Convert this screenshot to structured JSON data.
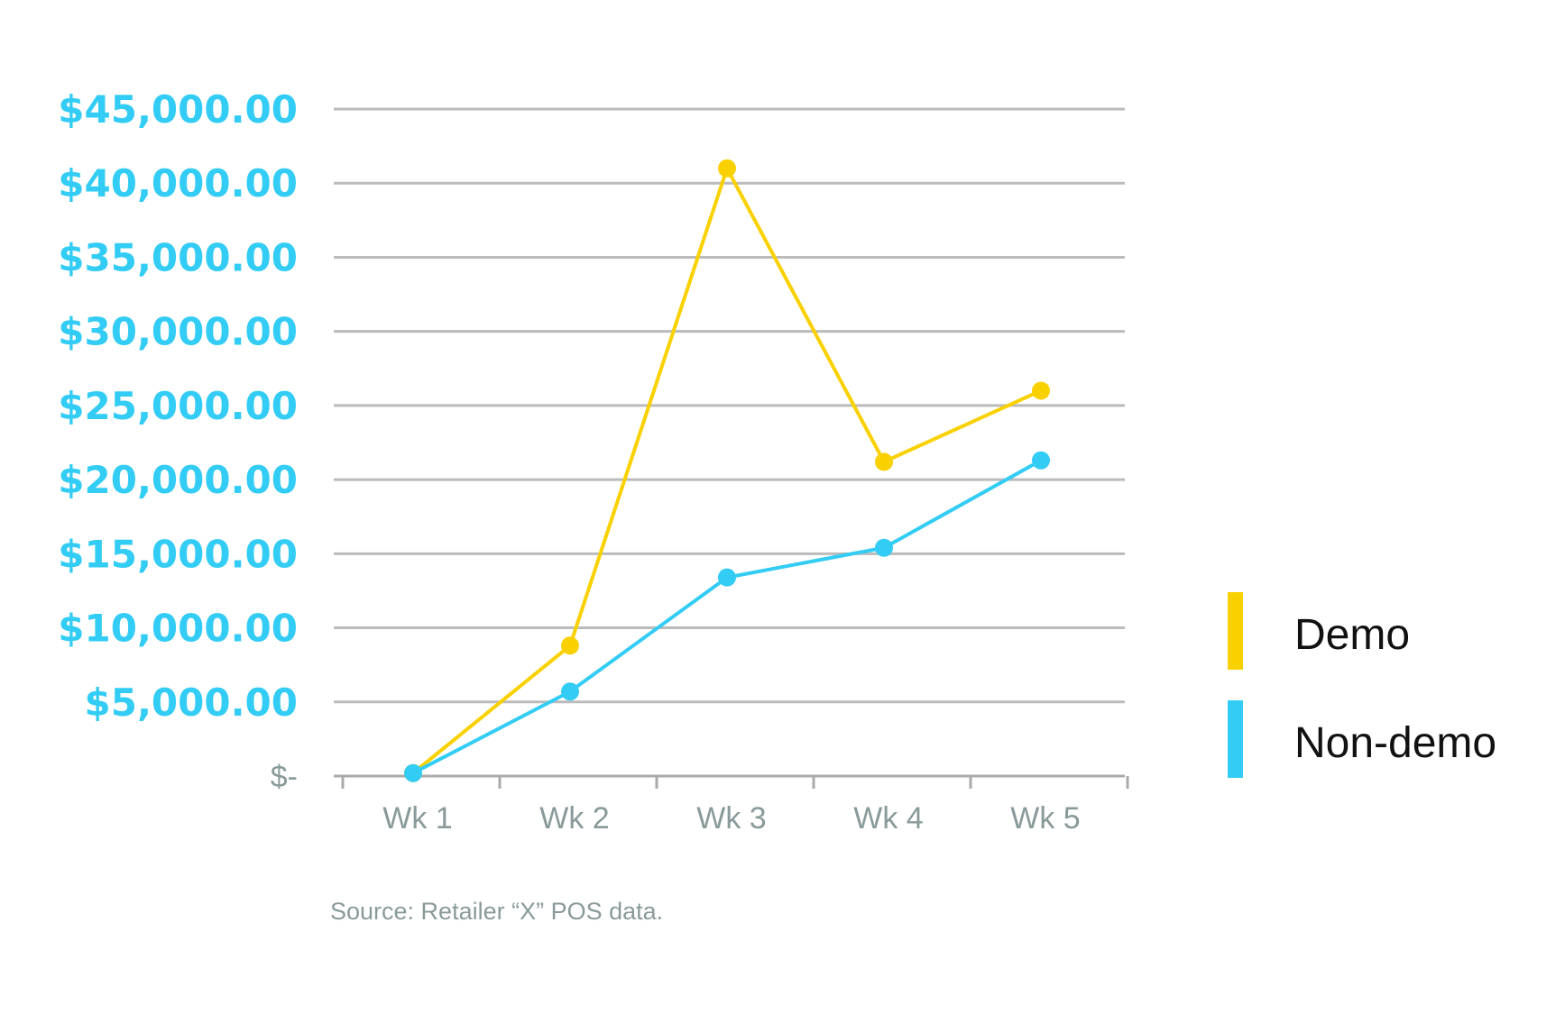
{
  "colors": {
    "demo": "#F9D100",
    "non_demo": "#33CCF5",
    "ytick_text": "#33CCF5",
    "ytick_zero_text": "#8A9A9A",
    "xtick_text": "#8A9A9A",
    "grid": "#BBBBBB",
    "axis": "#AAAAAA",
    "source_text": "#8A9A9A"
  },
  "chart_data": {
    "type": "line",
    "title": "",
    "xlabel": "",
    "ylabel": "",
    "categories": [
      "Wk 1",
      "Wk 2",
      "Wk 3",
      "Wk 4",
      "Wk 5"
    ],
    "ylim": [
      0,
      45000
    ],
    "yticks": [
      0,
      5000,
      10000,
      15000,
      20000,
      25000,
      30000,
      35000,
      40000,
      45000
    ],
    "ytick_labels": [
      "$-",
      "$5,000.00",
      "$10,000.00",
      "$15,000.00",
      "$20,000.00",
      "$25,000.00",
      "$30,000.00",
      "$35,000.00",
      "$40,000.00",
      "$45,000.00"
    ],
    "grid": true,
    "legend_position": "right",
    "series": [
      {
        "name": "Demo",
        "color_key": "demo",
        "values": [
          200,
          8800,
          41000,
          21200,
          26000
        ]
      },
      {
        "name": "Non-demo",
        "color_key": "non_demo",
        "values": [
          200,
          5700,
          13400,
          15400,
          21300
        ]
      }
    ]
  },
  "footer": {
    "source": "Source: Retailer “X” POS data."
  }
}
